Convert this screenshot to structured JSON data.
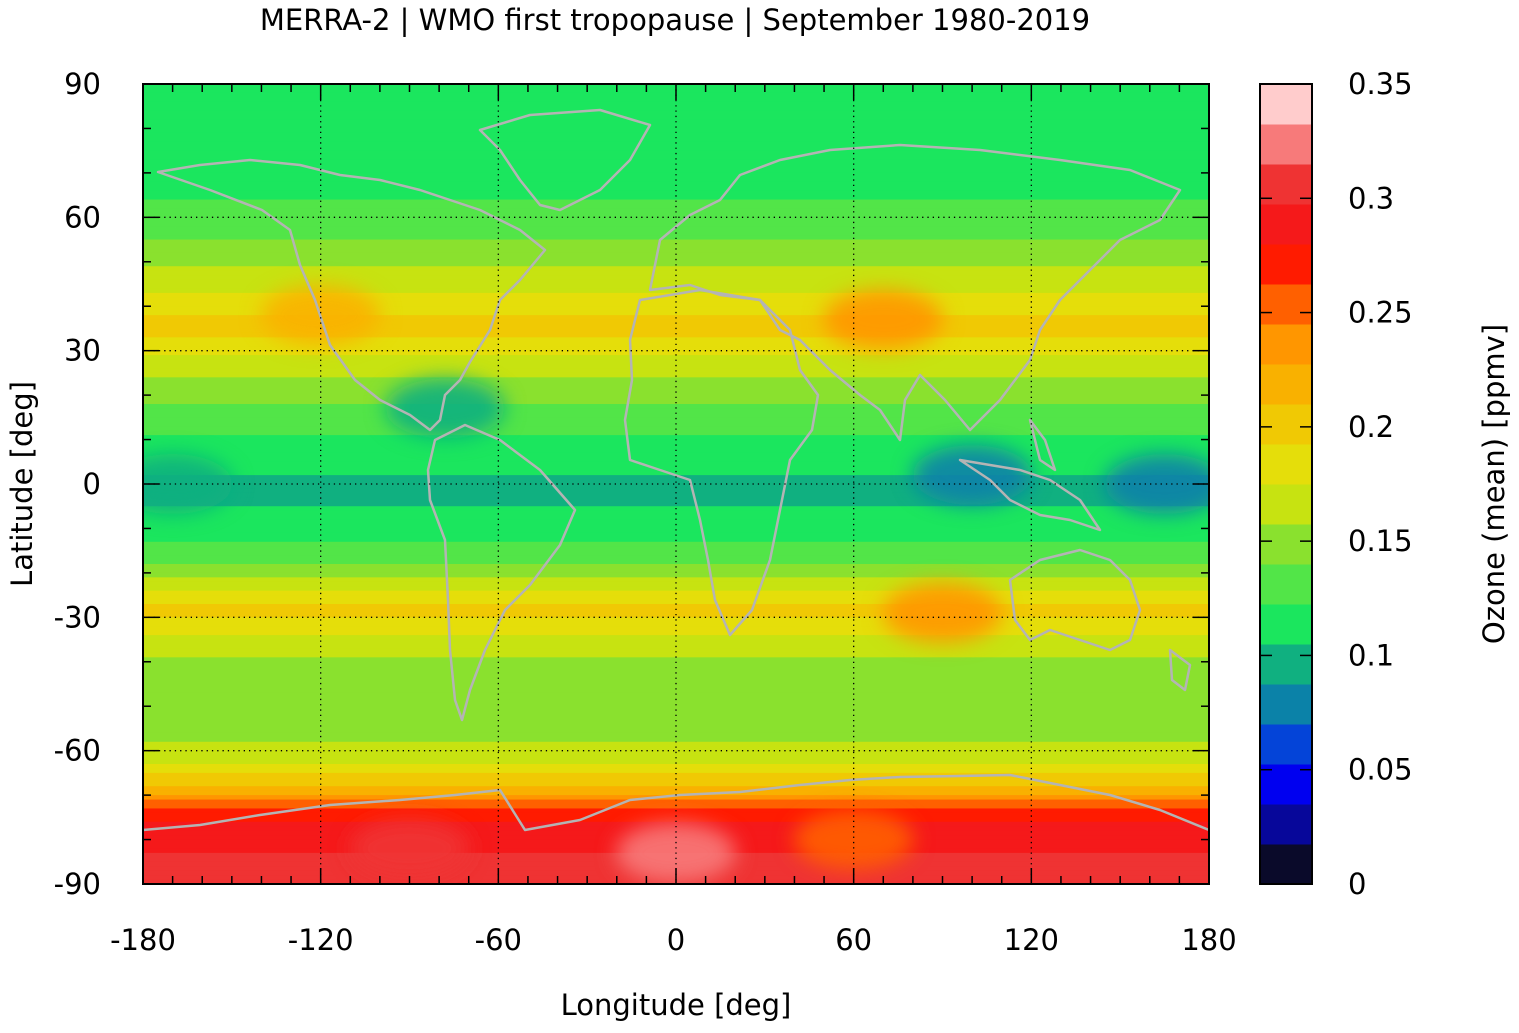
{
  "chart_data": {
    "type": "heatmap",
    "title": "MERRA-2 | WMO first tropopause | September 1980-2019",
    "xlabel": "Longitude [deg]",
    "ylabel": "Latitude [deg]",
    "xlim": [
      -180,
      180
    ],
    "ylim": [
      -90,
      90
    ],
    "x_ticks": [
      -180,
      -120,
      -60,
      0,
      60,
      120,
      180
    ],
    "y_ticks": [
      90,
      60,
      30,
      0,
      -30,
      -60,
      -90
    ],
    "grid": true,
    "coastlines_color": "#b4b4b4",
    "colorbar": {
      "label": "Ozone (mean) [ppmv]",
      "range": [
        0,
        0.35
      ],
      "ticks": [
        "0",
        "0.05",
        "0.1",
        "0.15",
        "0.2",
        "0.25",
        "0.3",
        "0.35"
      ],
      "levels": 20,
      "colors": [
        "#0a0a2a",
        "#07079a",
        "#0000f0",
        "#0444d8",
        "#0b82a8",
        "#10b080",
        "#1be65e",
        "#52e548",
        "#8ae12e",
        "#c7e311",
        "#e5de0a",
        "#f0c904",
        "#f9b100",
        "#ff9600",
        "#ff6000",
        "#ff1b00",
        "#f5191a",
        "#ef3333",
        "#f77a7a",
        "#ffcccc"
      ]
    },
    "zonal_profile_ppmv": [
      {
        "lat": 90,
        "value": 0.11
      },
      {
        "lat": 75,
        "value": 0.11
      },
      {
        "lat": 65,
        "value": 0.12
      },
      {
        "lat": 55,
        "value": 0.14
      },
      {
        "lat": 45,
        "value": 0.17
      },
      {
        "lat": 35,
        "value": 0.2
      },
      {
        "lat": 25,
        "value": 0.16
      },
      {
        "lat": 15,
        "value": 0.13
      },
      {
        "lat": 5,
        "value": 0.11
      },
      {
        "lat": 0,
        "value": 0.1
      },
      {
        "lat": -10,
        "value": 0.11
      },
      {
        "lat": -20,
        "value": 0.15
      },
      {
        "lat": -28,
        "value": 0.2
      },
      {
        "lat": -35,
        "value": 0.17
      },
      {
        "lat": -45,
        "value": 0.14
      },
      {
        "lat": -55,
        "value": 0.15
      },
      {
        "lat": -62,
        "value": 0.17
      },
      {
        "lat": -68,
        "value": 0.21
      },
      {
        "lat": -73,
        "value": 0.26
      },
      {
        "lat": -78,
        "value": 0.29
      },
      {
        "lat": -85,
        "value": 0.3
      },
      {
        "lat": -90,
        "value": 0.3
      }
    ],
    "anomalies_ppmv": [
      {
        "lon": 100,
        "lat": 2,
        "value": 0.07
      },
      {
        "lon": 165,
        "lat": 0,
        "value": 0.08
      },
      {
        "lon": -170,
        "lat": 0,
        "value": 0.09
      },
      {
        "lon": -78,
        "lat": 17,
        "value": 0.09
      },
      {
        "lon": 70,
        "lat": 37,
        "value": 0.24
      },
      {
        "lon": -120,
        "lat": 38,
        "value": 0.21
      },
      {
        "lon": 90,
        "lat": -29,
        "value": 0.24
      },
      {
        "lon": 0,
        "lat": -83,
        "value": 0.32
      },
      {
        "lon": -90,
        "lat": -82,
        "value": 0.31
      },
      {
        "lon": 60,
        "lat": -80,
        "value": 0.25
      }
    ]
  }
}
